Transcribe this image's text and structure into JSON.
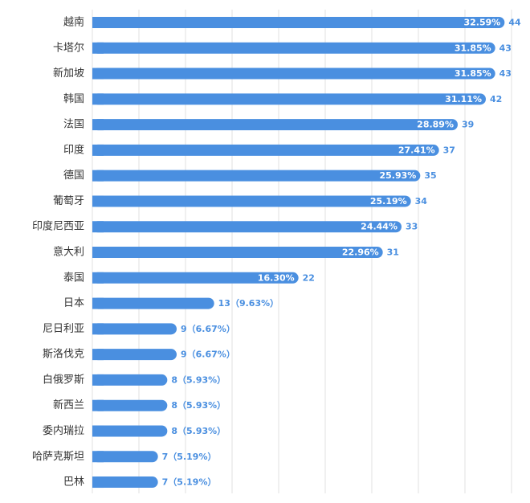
{
  "chart_data": {
    "type": "bar",
    "orientation": "horizontal",
    "categories": [
      "越南",
      "卡塔尔",
      "新加坡",
      "韩国",
      "法国",
      "印度",
      "德国",
      "葡萄牙",
      "印度尼西亚",
      "意大利",
      "泰国",
      "日本",
      "尼日利亚",
      "斯洛伐克",
      "白俄罗斯",
      "新西兰",
      "委内瑞拉",
      "哈萨克斯坦",
      "巴林"
    ],
    "values": [
      44,
      43,
      43,
      42,
      39,
      37,
      35,
      34,
      33,
      31,
      22,
      13,
      9,
      9,
      8,
      8,
      8,
      7,
      7
    ],
    "percent_labels": [
      "32.59%",
      "31.85%",
      "31.85%",
      "31.11%",
      "28.89%",
      "27.41%",
      "25.93%",
      "25.19%",
      "24.44%",
      "22.96%",
      "16.30%",
      "9.63%",
      "6.67%",
      "6.67%",
      "5.93%",
      "5.93%",
      "5.93%",
      "5.19%",
      "5.19%"
    ],
    "value_labels": [
      "44",
      "43",
      "43",
      "42",
      "39",
      "37",
      "35",
      "34",
      "33",
      "31",
      "22",
      "13（9.63%）",
      "9（6.67%）",
      "9（6.67%）",
      "8（5.93%）",
      "8（5.93%）",
      "8（5.93%）",
      "7（5.19%）",
      "7（5.19%）"
    ],
    "inner_label_threshold": 20,
    "xlim": [
      0,
      45
    ],
    "grid": true,
    "legend": "none",
    "colors": {
      "bar": "#4a8fe0",
      "grid": "#e2e2e2",
      "category_text": "#333333",
      "outer_label": "#4a8fe0",
      "inner_label": "#ffffff"
    }
  }
}
